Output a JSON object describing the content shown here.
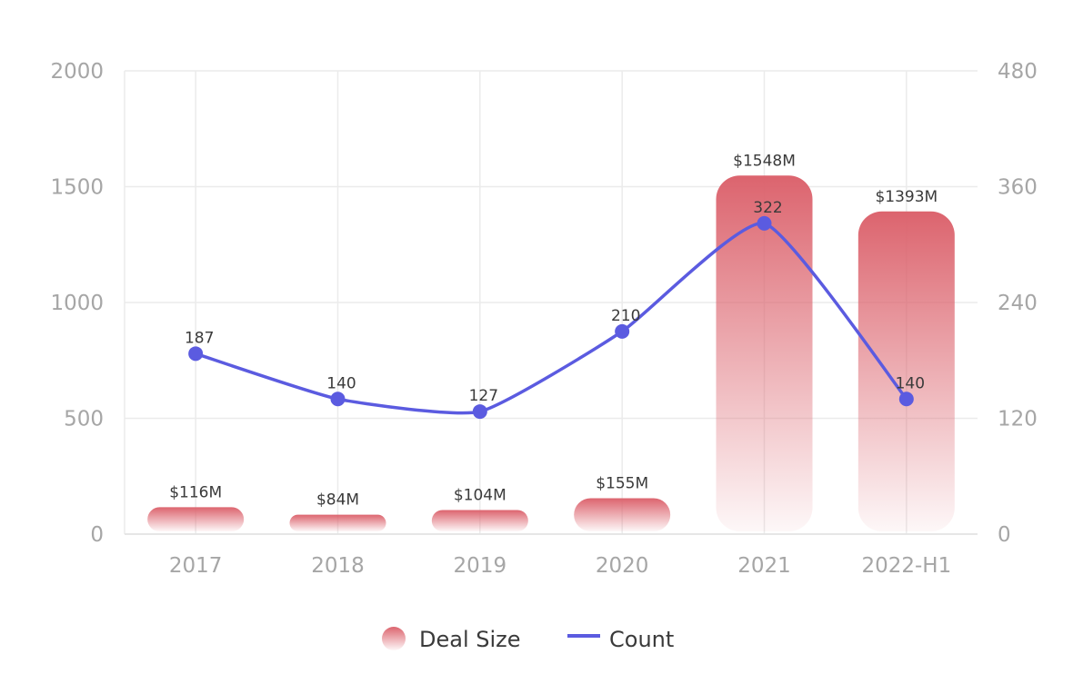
{
  "chart_data": {
    "type": "bar",
    "categories": [
      "2017",
      "2018",
      "2019",
      "2020",
      "2021",
      "2022-H1"
    ],
    "series": [
      {
        "name": "Deal Size",
        "type": "bar",
        "axis": "left",
        "values": [
          116,
          84,
          104,
          155,
          1548,
          1393
        ],
        "labels": [
          "$116M",
          "$84M",
          "$104M",
          "$155M",
          "$1548M",
          "$1393M"
        ],
        "color": "#dc646e"
      },
      {
        "name": "Count",
        "type": "line",
        "axis": "right",
        "values": [
          187,
          140,
          127,
          210,
          322,
          140
        ],
        "labels": [
          "187",
          "140",
          "127",
          "210",
          "322",
          "140"
        ],
        "color": "#5b5be0"
      }
    ],
    "y_left": {
      "ticks": [
        "0",
        "500",
        "1000",
        "1500",
        "2000"
      ],
      "range": [
        0,
        2000
      ]
    },
    "y_right": {
      "ticks": [
        "0",
        "120",
        "240",
        "360",
        "480"
      ],
      "range": [
        0,
        480
      ]
    },
    "grid": true,
    "legend_position": "bottom"
  }
}
